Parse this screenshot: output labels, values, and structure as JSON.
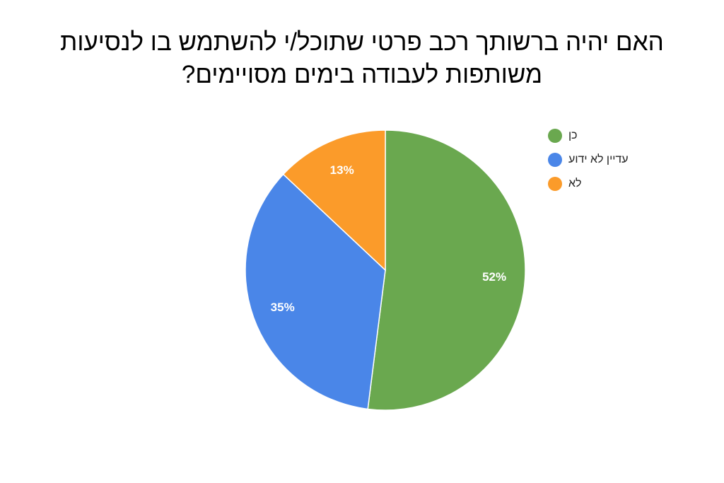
{
  "chart_data": {
    "type": "pie",
    "title": "האם יהיה ברשותך רכב פרטי שתוכל/י להשתמש בו לנסיעות משותפות לעבודה בימים מסויימים?",
    "categories": [
      "כן",
      "עדיין לא ידוע",
      "לא"
    ],
    "values": [
      52,
      35,
      13
    ],
    "labels": [
      "52%",
      "35%",
      "13%"
    ],
    "colors": [
      "#6aa84f",
      "#4a86e8",
      "#fb9b2a"
    ],
    "start_angle": "top",
    "direction": "clockwise",
    "legend_position": "right"
  }
}
